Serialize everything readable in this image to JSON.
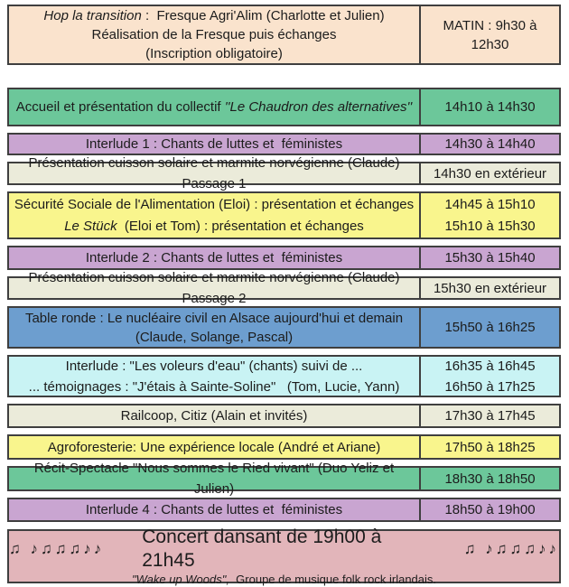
{
  "colors": {
    "peach": "#fae3cd",
    "green": "#6cc79a",
    "purple": "#c9a5d1",
    "cream": "#ebebda",
    "yellow": "#f9f58d",
    "blue": "#6d9ecf",
    "cyan": "#c9f3f4",
    "pink": "#e2b5ba",
    "border": "#3f3f3f",
    "text": "#1c1c1c"
  },
  "schedule": {
    "rows": [
      {
        "id": "fresque",
        "color": "peach",
        "activity": [
          [
            {
              "t": "Hop la transition",
              "i": true
            },
            {
              "t": " :  Fresque Agri'Alim (Charlotte et Julien)"
            }
          ],
          [
            {
              "t": "Réalisation de la Fresque puis échanges"
            }
          ],
          [
            {
              "t": "(Inscription obligatoire)"
            }
          ]
        ],
        "time": [
          "MATIN : 9h30 à 12h30"
        ]
      },
      {
        "id": "accueil",
        "color": "green",
        "activity": [
          [
            {
              "t": "Accueil et présentation du collectif "
            },
            {
              "t": "''Le Chaudron des alternatives''",
              "i": true
            }
          ]
        ],
        "time": [
          "14h10 à 14h30"
        ]
      },
      {
        "id": "interlude1",
        "color": "purple",
        "activity": [
          [
            {
              "t": "Interlude 1 : Chants de luttes et  féministes"
            }
          ]
        ],
        "time": [
          "14h30 à 14h40"
        ]
      },
      {
        "id": "cuisson1",
        "color": "cream",
        "activity": [
          [
            {
              "t": "Présentation cuisson solaire et marmite norvégienne (Claude) Passage 1"
            }
          ]
        ],
        "time": [
          "14h30 en extérieur"
        ]
      },
      {
        "id": "ssa",
        "color": "yellow",
        "activity": [
          [
            {
              "t": "Sécurité Sociale de l'Alimentation (Eloi) : présentation et échanges"
            }
          ],
          [
            {
              "t": "Le Stück",
              "i": true
            },
            {
              "t": "  (Eloi et Tom) : présentation et échanges"
            }
          ]
        ],
        "time": [
          "14h45 à 15h10",
          "15h10 à 15h30"
        ]
      },
      {
        "id": "interlude2",
        "color": "purple",
        "activity": [
          [
            {
              "t": "Interlude 2 : Chants de luttes et  féministes"
            }
          ]
        ],
        "time": [
          "15h30 à 15h40"
        ]
      },
      {
        "id": "cuisson2",
        "color": "cream",
        "activity": [
          [
            {
              "t": "Présentation cuisson solaire et marmite norvégienne (Claude) Passage 2"
            }
          ]
        ],
        "time": [
          "15h30 en extérieur"
        ]
      },
      {
        "id": "table-ronde",
        "color": "blue",
        "activity": [
          [
            {
              "t": "Table ronde : Le nucléaire civil en Alsace aujourd'hui et demain"
            }
          ],
          [
            {
              "t": "(Claude, Solange, Pascal)"
            }
          ]
        ],
        "time": [
          "15h50 à 16h25"
        ]
      },
      {
        "id": "voleurs",
        "color": "cyan",
        "activity": [
          [
            {
              "t": "Interlude : \"Les voleurs d'eau\" (chants) suivi de ..."
            }
          ],
          [
            {
              "t": "... témoignages : \"J'étais à Sainte-Soline\"   (Tom, Lucie, Yann)"
            }
          ]
        ],
        "time": [
          "16h35 à 16h45",
          "16h50 à 17h25"
        ]
      },
      {
        "id": "railcoop",
        "color": "cream",
        "activity": [
          [
            {
              "t": "Railcoop, Citiz (Alain et invités)"
            }
          ]
        ],
        "time": [
          "17h30 à 17h45"
        ]
      },
      {
        "id": "agroforesterie",
        "color": "yellow",
        "activity": [
          [
            {
              "t": "Agroforesterie: Une expérience locale (André et Ariane)"
            }
          ]
        ],
        "time": [
          "17h50 à 18h25"
        ]
      },
      {
        "id": "recit",
        "color": "green",
        "activity": [
          [
            {
              "t": "Récit-Spectacle \"Nous sommes le Ried vivant\" (Duo Yeliz et Julien)"
            }
          ]
        ],
        "time": [
          "18h30 à 18h50"
        ]
      },
      {
        "id": "interlude4",
        "color": "purple",
        "activity": [
          [
            {
              "t": "Interlude 4 : Chants de luttes et  féministes"
            }
          ]
        ],
        "time": [
          "18h50 à 19h00"
        ]
      }
    ],
    "concert": {
      "id": "concert",
      "color": "pink",
      "notes": "♫ ♪♫♫♫♪♪",
      "title": "Concert dansant de 19h00 à 21h45",
      "subtitle_italic": "\"Wake up Woods\",",
      "subtitle_rest": "  Groupe de musique folk rock irlandais."
    }
  }
}
